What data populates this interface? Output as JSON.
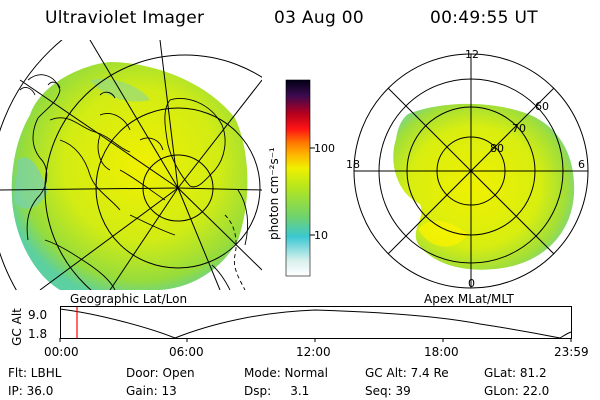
{
  "header": {
    "instrument": "Ultraviolet Imager",
    "date": "03 Aug 00",
    "time": "00:49:55 UT"
  },
  "geographic_panel": {
    "label": "Geographic Lat/Lon"
  },
  "apex_panel": {
    "label": "Apex MLat/MLT",
    "mlt_labels": [
      "12",
      "18",
      "6",
      "0"
    ],
    "lat_labels": [
      "60",
      "70",
      "80"
    ]
  },
  "colorbar": {
    "unit_label": "photon cm⁻²s⁻¹",
    "ticks": [
      "100",
      "10"
    ],
    "colors": [
      "#ffffff",
      "#d8f0ec",
      "#3cc8d2",
      "#6ed26e",
      "#b4e61e",
      "#f0f000",
      "#ffb400",
      "#ff7800",
      "#ff1414",
      "#b4001e",
      "#3c0a50",
      "#000014"
    ]
  },
  "altitude_plot": {
    "ylabel": "GC Alt",
    "y_ticks": [
      "9.0",
      "1.8"
    ],
    "x_ticks": [
      "00:00",
      "06:00",
      "12:00",
      "18:00",
      "23:59"
    ],
    "marker_color": "#ff0000"
  },
  "info": {
    "flt": "Flt: LBHL",
    "door": "Door: Open",
    "mode": "Mode: Normal",
    "gc_alt": "GC Alt: 7.4 Re",
    "glat": "GLat: 81.2",
    "ip": "IP: 36.0",
    "gain": "Gain: 13",
    "dsp": "Dsp:     3.1",
    "seq": "Seq: 39",
    "glon": "GLon: 22.0"
  }
}
